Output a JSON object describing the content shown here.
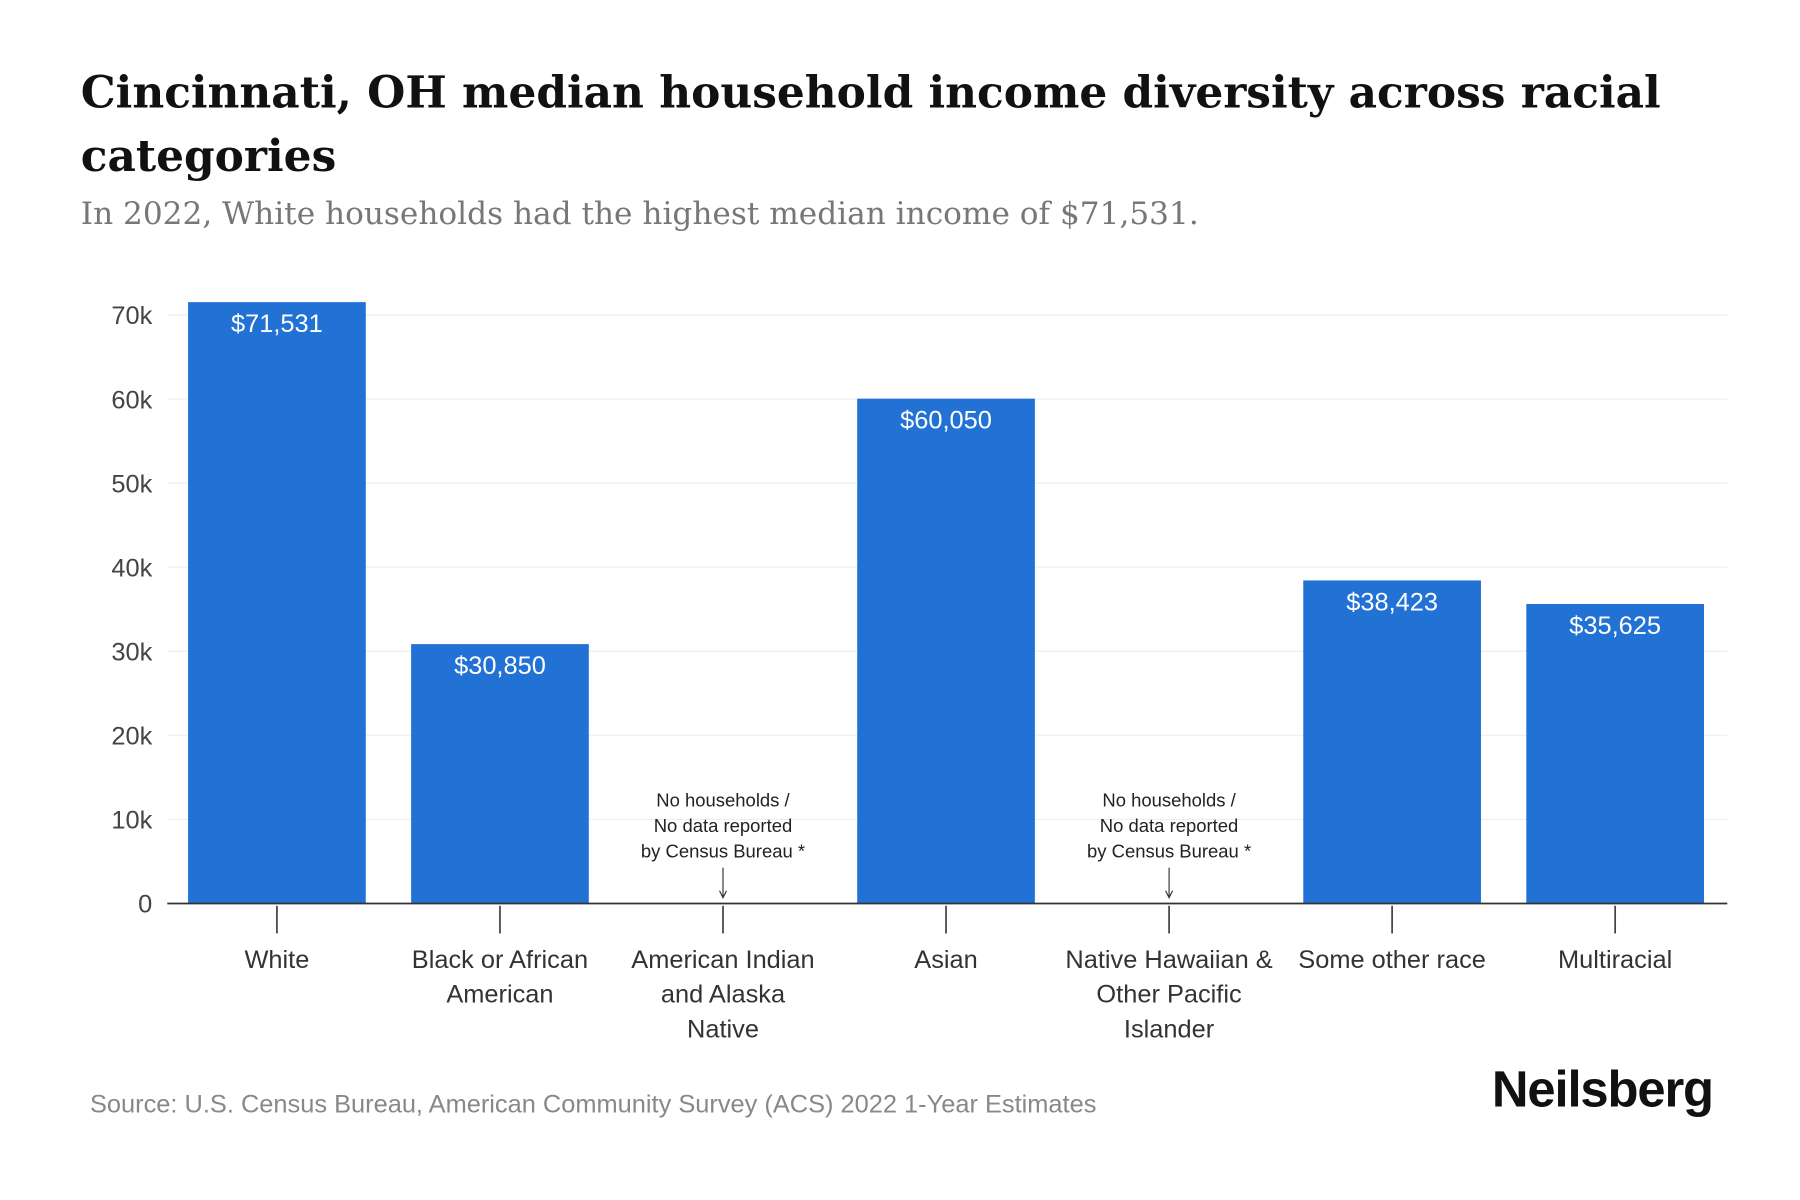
{
  "title": "Cincinnati, OH median household income diversity across racial categories",
  "subtitle": "In 2022, White households had the highest median income of $71,531.",
  "source": "Source: U.S. Census Bureau, American Community Survey (ACS) 2022 1-Year Estimates",
  "logo": "Neilsberg",
  "colors": {
    "bar": "#2272d6"
  },
  "chart_data": {
    "type": "bar",
    "categories": [
      [
        "White"
      ],
      [
        "Black or African",
        "American"
      ],
      [
        "American Indian",
        "and Alaska",
        "Native"
      ],
      [
        "Asian"
      ],
      [
        "Native Hawaiian &",
        "Other Pacific",
        "Islander"
      ],
      [
        "Some other race"
      ],
      [
        "Multiracial"
      ]
    ],
    "values": [
      71531,
      30850,
      null,
      60050,
      null,
      38423,
      35625
    ],
    "value_labels": [
      "$71,531",
      "$30,850",
      "",
      "$60,050",
      "",
      "$38,423",
      "$35,625"
    ],
    "no_data_note": [
      "No households /",
      "No data reported",
      "by Census Bureau *"
    ],
    "yticks": [
      0,
      10000,
      20000,
      30000,
      40000,
      50000,
      60000,
      70000
    ],
    "ytick_labels": [
      "0",
      "10k",
      "20k",
      "30k",
      "40k",
      "50k",
      "60k",
      "70k"
    ],
    "ylim": [
      0,
      70000
    ],
    "xlabel": "",
    "ylabel": "",
    "grid": true
  }
}
